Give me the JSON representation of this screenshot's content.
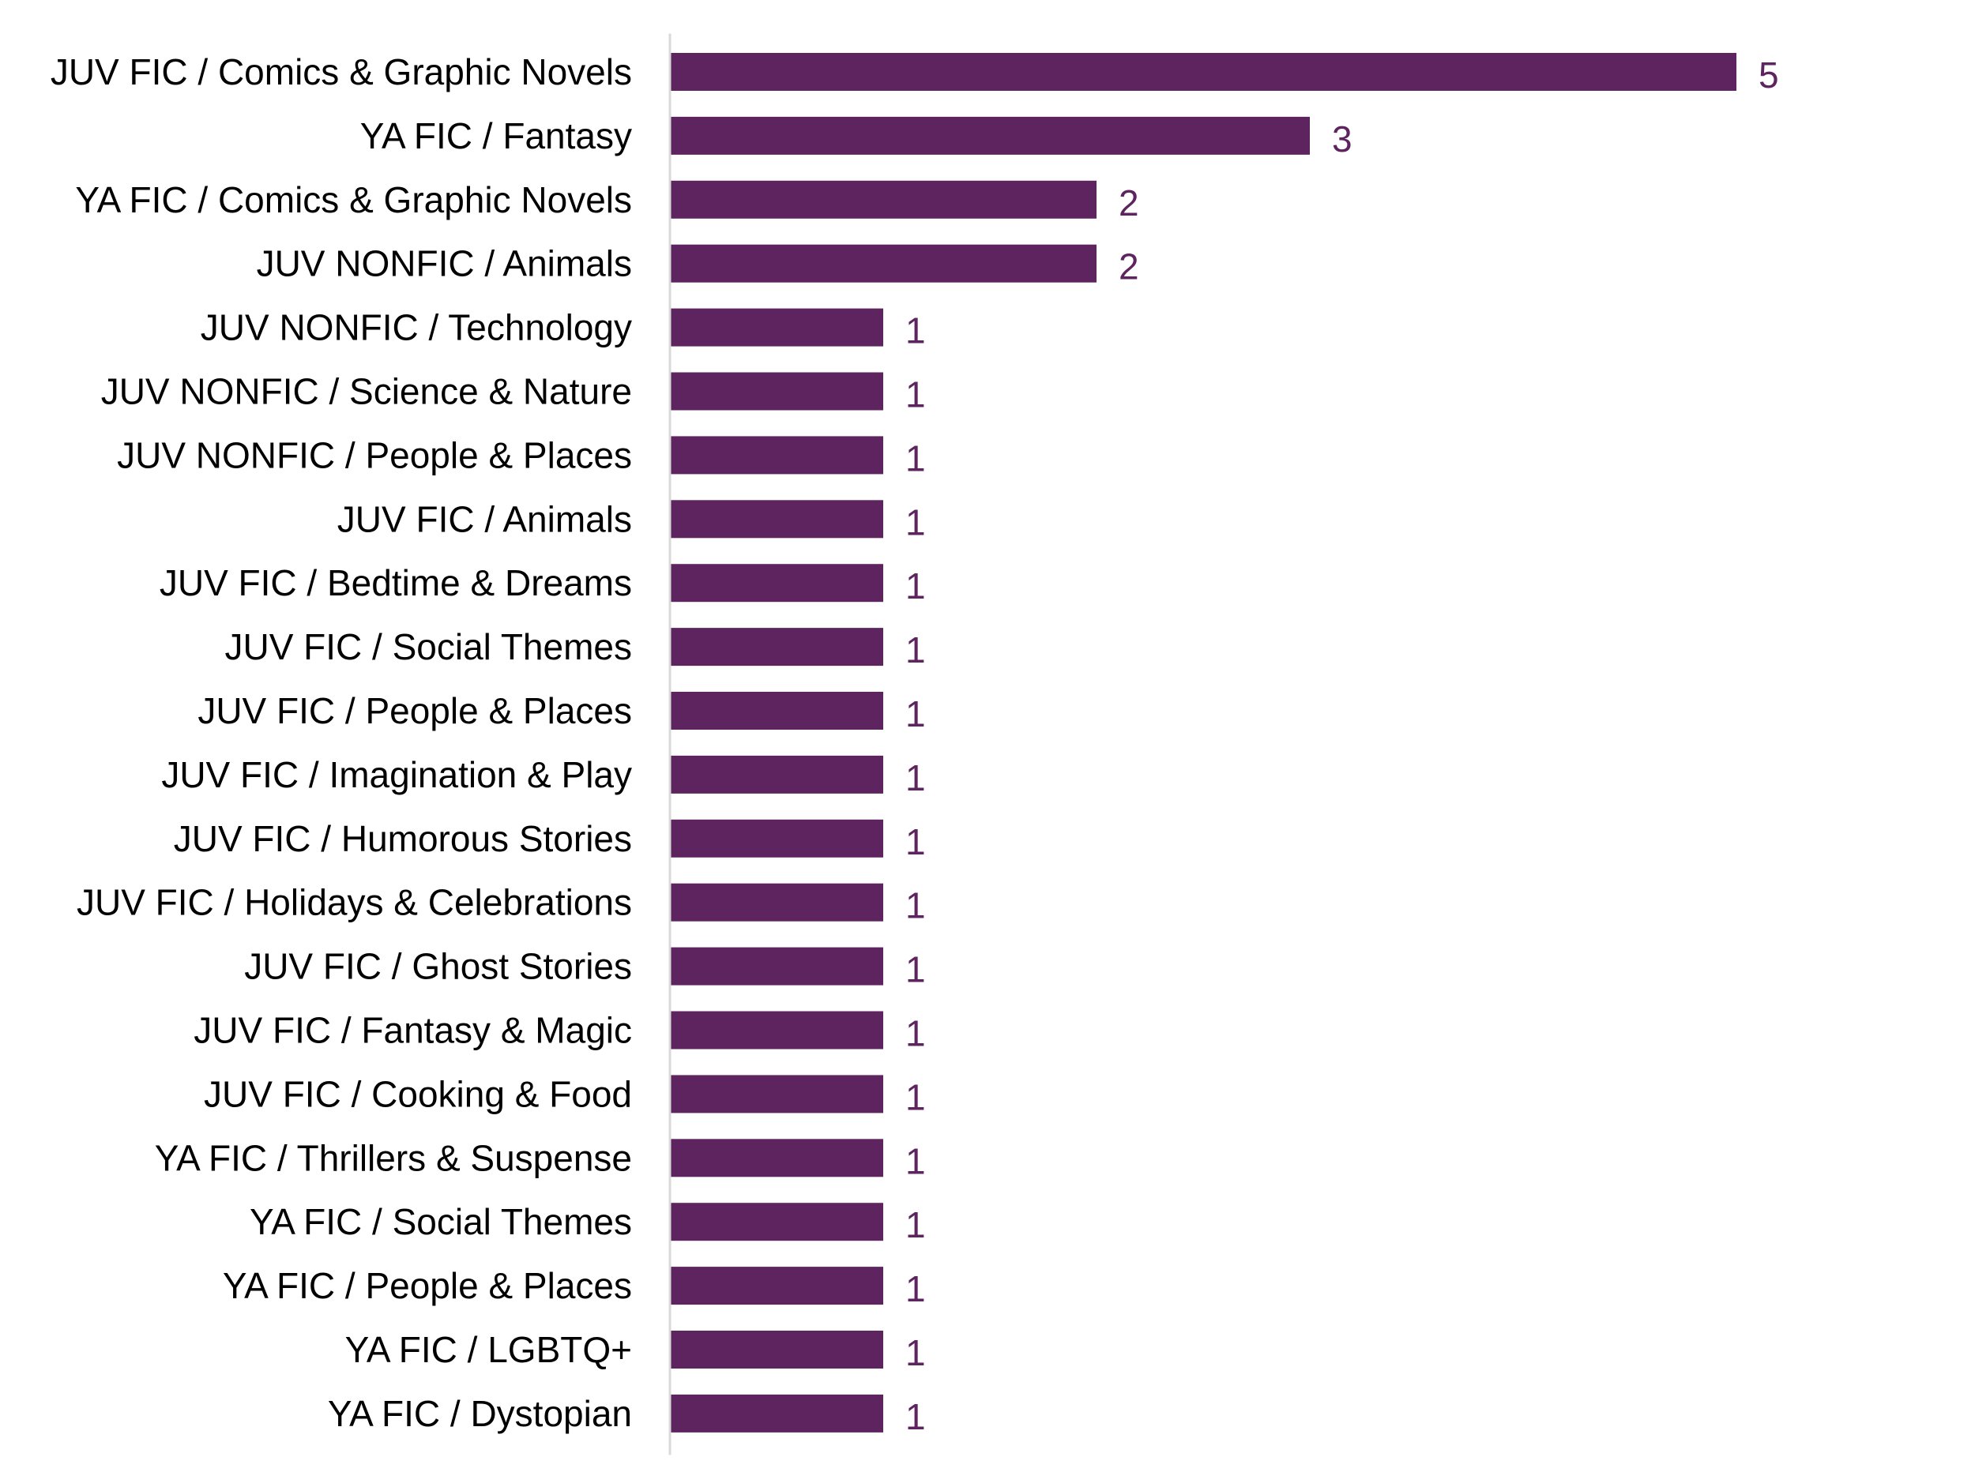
{
  "colors": {
    "bar": "#5e2460",
    "value_label": "#5e2460",
    "category_label": "#000000",
    "axis_line": "#d9d9d9",
    "background": "#ffffff"
  },
  "chart_data": {
    "type": "bar",
    "orientation": "horizontal",
    "title": "",
    "xlabel": "",
    "ylabel": "",
    "xlim": [
      0,
      5
    ],
    "grid": false,
    "legend": "none",
    "data_labels": true,
    "categories": [
      "JUV FIC / Comics & Graphic Novels",
      "YA FIC / Fantasy",
      "YA FIC / Comics & Graphic Novels",
      "JUV NONFIC / Animals",
      "JUV NONFIC / Technology",
      "JUV NONFIC / Science & Nature",
      "JUV NONFIC / People & Places",
      "JUV FIC / Animals",
      "JUV FIC / Bedtime & Dreams",
      "JUV FIC / Social Themes",
      "JUV FIC / People & Places",
      "JUV FIC / Imagination & Play",
      "JUV FIC / Humorous Stories",
      "JUV FIC / Holidays & Celebrations",
      "JUV FIC / Ghost Stories",
      "JUV FIC / Fantasy & Magic",
      "JUV FIC / Cooking & Food",
      "YA FIC / Thrillers & Suspense",
      "YA FIC / Social Themes",
      "YA FIC / People & Places",
      "YA FIC / LGBTQ+",
      "YA FIC / Dystopian"
    ],
    "values": [
      5,
      3,
      2,
      2,
      1,
      1,
      1,
      1,
      1,
      1,
      1,
      1,
      1,
      1,
      1,
      1,
      1,
      1,
      1,
      1,
      1,
      1
    ]
  }
}
